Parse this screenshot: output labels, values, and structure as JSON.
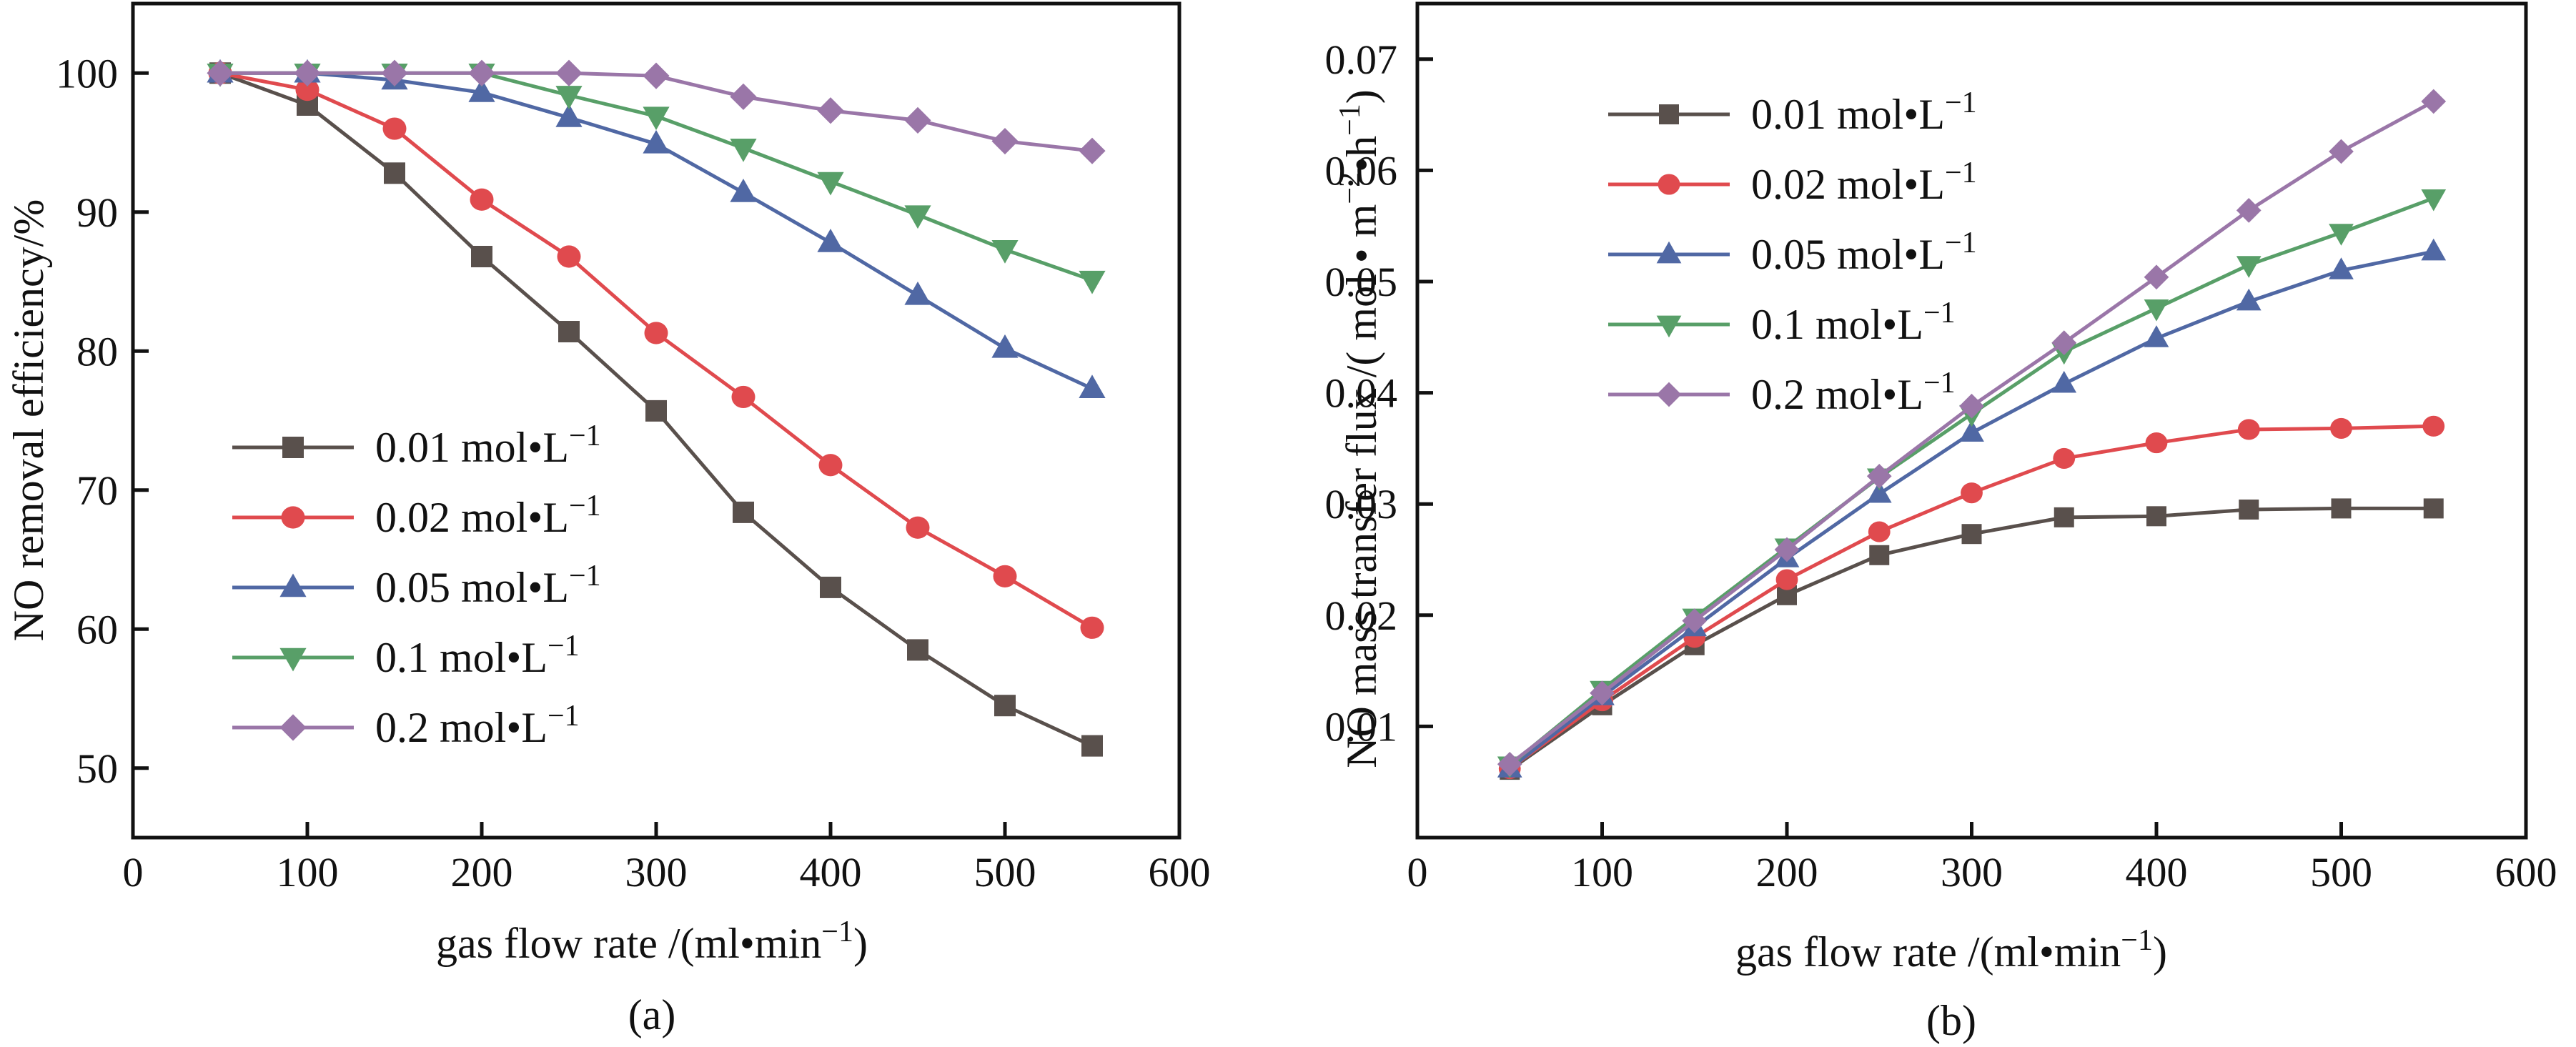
{
  "chart_data": [
    {
      "id": "a",
      "type": "line",
      "panel_label": "(a)",
      "title": "",
      "xlabel": "gas flow rate /(ml•min⁻¹)",
      "ylabel": "NO removal efficiency/%",
      "xlim": [
        0,
        600
      ],
      "ylim": [
        45,
        105
      ],
      "xticks": [
        0,
        100,
        200,
        300,
        400,
        500,
        600
      ],
      "xtick_labels": [
        "0",
        "100",
        "200",
        "300",
        "400",
        "500",
        "600"
      ],
      "yticks": [
        50,
        60,
        70,
        80,
        90,
        100
      ],
      "ytick_labels": [
        "50",
        "60",
        "70",
        "80",
        "90",
        "100"
      ],
      "grid": false,
      "legend_position": "center-left",
      "x": [
        50,
        100,
        150,
        200,
        250,
        300,
        350,
        400,
        450,
        500,
        550
      ],
      "series": [
        {
          "name": "0.01 mol•L⁻¹",
          "marker": "square",
          "color": "#59504C",
          "values": [
            100,
            97.7,
            92.8,
            86.8,
            81.4,
            75.7,
            68.4,
            63.0,
            58.5,
            54.5,
            51.6
          ]
        },
        {
          "name": "0.02 mol•L⁻¹",
          "marker": "circle",
          "color": "#E04A4E",
          "values": [
            100,
            98.8,
            96.0,
            90.9,
            86.8,
            81.3,
            76.7,
            71.8,
            67.3,
            63.8,
            60.1
          ]
        },
        {
          "name": "0.05 mol•L⁻¹",
          "marker": "triangle-up",
          "color": "#5068A4",
          "values": [
            100,
            100,
            99.5,
            98.6,
            96.8,
            94.9,
            91.4,
            87.8,
            84.0,
            80.2,
            77.3
          ]
        },
        {
          "name": "0.1 mol•L⁻¹",
          "marker": "triangle-down",
          "color": "#589F68",
          "values": [
            100,
            100,
            100,
            100,
            98.4,
            96.9,
            94.6,
            92.2,
            89.8,
            87.3,
            85.1
          ]
        },
        {
          "name": "0.2 mol•L⁻¹",
          "marker": "diamond",
          "color": "#9A76A8",
          "values": [
            100,
            100,
            100,
            100,
            100,
            99.8,
            98.3,
            97.3,
            96.6,
            95.1,
            94.4
          ]
        }
      ]
    },
    {
      "id": "b",
      "type": "line",
      "panel_label": "(b)",
      "title": "",
      "xlabel": "gas flow rate /(ml•min⁻¹)",
      "ylabel": "NO mass transfer flux /( mol • m⁻²•h⁻¹)",
      "xlim": [
        0,
        600
      ],
      "ylim": [
        0,
        0.075
      ],
      "xticks": [
        0,
        100,
        200,
        300,
        400,
        500,
        600
      ],
      "xtick_labels": [
        "0",
        "100",
        "200",
        "300",
        "400",
        "500",
        "600"
      ],
      "yticks": [
        0.01,
        0.02,
        0.03,
        0.04,
        0.05,
        0.06,
        0.07
      ],
      "ytick_labels": [
        "0.01",
        "0.02",
        "0.03",
        "0.04",
        "0.05",
        "0.06",
        "0.07"
      ],
      "grid": false,
      "legend_position": "top-left",
      "x": [
        50,
        100,
        150,
        200,
        250,
        300,
        350,
        400,
        450,
        500,
        550
      ],
      "series": [
        {
          "name": "0.01 mol•L⁻¹",
          "marker": "square",
          "color": "#59504C",
          "values": [
            0.0061,
            0.0119,
            0.0173,
            0.0218,
            0.0254,
            0.0273,
            0.0288,
            0.0289,
            0.0295,
            0.0296,
            0.0296
          ]
        },
        {
          "name": "0.02 mol•L⁻¹",
          "marker": "circle",
          "color": "#E04A4E",
          "values": [
            0.0062,
            0.0123,
            0.018,
            0.0232,
            0.0275,
            0.031,
            0.0341,
            0.0355,
            0.0367,
            0.0368,
            0.037
          ]
        },
        {
          "name": "0.05 mol•L⁻¹",
          "marker": "triangle-up",
          "color": "#5068A4",
          "values": [
            0.0062,
            0.0127,
            0.0189,
            0.0251,
            0.0309,
            0.0364,
            0.0408,
            0.0449,
            0.0482,
            0.051,
            0.0527
          ]
        },
        {
          "name": "0.1 mol•L⁻¹",
          "marker": "triangle-down",
          "color": "#589F68",
          "values": [
            0.0065,
            0.0133,
            0.0198,
            0.0261,
            0.0324,
            0.0381,
            0.0437,
            0.0476,
            0.0515,
            0.0544,
            0.0575
          ]
        },
        {
          "name": "0.2 mol•L⁻¹",
          "marker": "diamond",
          "color": "#9A76A8",
          "values": [
            0.0066,
            0.013,
            0.0195,
            0.0259,
            0.0325,
            0.0388,
            0.0445,
            0.0504,
            0.0564,
            0.0617,
            0.0662
          ]
        }
      ]
    }
  ]
}
